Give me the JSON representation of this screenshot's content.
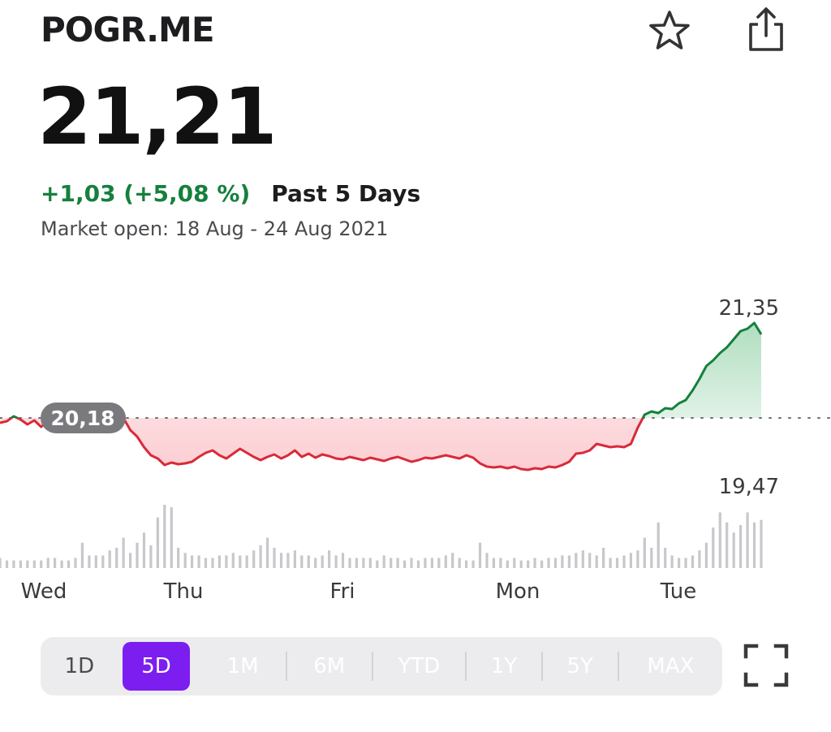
{
  "header": {
    "ticker": "POGR.ME",
    "price": "21,21",
    "change": "+1,03 (+5,08 %)",
    "period": "Past 5 Days",
    "market_info": "Market open: 18 Aug - 24 Aug 2021",
    "icons": {
      "favorite": "star-icon",
      "share": "share-icon",
      "expand": "expand-icon"
    }
  },
  "colors": {
    "up": "#15803d",
    "down": "#d92a3a",
    "accent": "#7c1ef0",
    "baseline_badge": "#7a7a7e"
  },
  "chart_data": {
    "type": "line",
    "x_labels": [
      "Wed",
      "Thu",
      "Fri",
      "Mon",
      "Tue"
    ],
    "baseline": 20.18,
    "baseline_label": "20,18",
    "high": 21.35,
    "high_label": "21,35",
    "low": 19.47,
    "low_label": "19,47",
    "price_series": [
      20.12,
      20.14,
      20.2,
      20.16,
      20.1,
      20.15,
      20.07,
      20.14,
      20.12,
      20.16,
      20.2,
      20.24,
      20.22,
      20.18,
      20.22,
      20.19,
      20.17,
      20.19,
      20.18,
      20.03,
      19.95,
      19.82,
      19.72,
      19.68,
      19.6,
      19.63,
      19.61,
      19.62,
      19.64,
      19.7,
      19.75,
      19.78,
      19.72,
      19.68,
      19.74,
      19.8,
      19.75,
      19.7,
      19.66,
      19.7,
      19.73,
      19.68,
      19.72,
      19.78,
      19.7,
      19.74,
      19.69,
      19.73,
      19.71,
      19.68,
      19.67,
      19.7,
      19.68,
      19.66,
      19.69,
      19.67,
      19.65,
      19.68,
      19.7,
      19.67,
      19.64,
      19.66,
      19.69,
      19.68,
      19.7,
      19.72,
      19.7,
      19.68,
      19.72,
      19.69,
      19.62,
      19.58,
      19.57,
      19.58,
      19.56,
      19.58,
      19.55,
      19.54,
      19.56,
      19.55,
      19.58,
      19.57,
      19.6,
      19.64,
      19.74,
      19.75,
      19.78,
      19.86,
      19.84,
      19.82,
      19.83,
      19.82,
      19.86,
      20.06,
      20.22,
      20.26,
      20.24,
      20.3,
      20.29,
      20.36,
      20.4,
      20.52,
      20.66,
      20.82,
      20.89,
      20.98,
      21.05,
      21.15,
      21.25,
      21.28,
      21.35,
      21.21
    ],
    "day_index": [
      0,
      19,
      47,
      70,
      93
    ],
    "volume_series": [
      4,
      3,
      3,
      3,
      3,
      3,
      3,
      4,
      4,
      3,
      3,
      4,
      10,
      5,
      5,
      5,
      7,
      8,
      12,
      6,
      10,
      14,
      9,
      20,
      25,
      24,
      8,
      6,
      5,
      5,
      4,
      4,
      5,
      5,
      6,
      5,
      5,
      7,
      9,
      12,
      8,
      6,
      6,
      7,
      5,
      5,
      4,
      5,
      7,
      5,
      6,
      4,
      4,
      4,
      4,
      3,
      5,
      4,
      4,
      3,
      4,
      3,
      4,
      4,
      4,
      5,
      6,
      4,
      3,
      3,
      10,
      6,
      4,
      4,
      3,
      4,
      3,
      3,
      4,
      3,
      4,
      4,
      5,
      5,
      6,
      7,
      6,
      5,
      8,
      4,
      4,
      5,
      6,
      7,
      12,
      8,
      18,
      8,
      5,
      4,
      4,
      5,
      7,
      10,
      16,
      22,
      18,
      14,
      17,
      22,
      18,
      19
    ]
  },
  "ranges": [
    {
      "label": "1D",
      "style": "dim"
    },
    {
      "label": "5D",
      "style": "active"
    },
    {
      "label": "1M",
      "style": "light"
    },
    {
      "label": "6M",
      "style": "light"
    },
    {
      "label": "YTD",
      "style": "light"
    },
    {
      "label": "1Y",
      "style": "light"
    },
    {
      "label": "5Y",
      "style": "light"
    },
    {
      "label": "MAX",
      "style": "light"
    }
  ]
}
